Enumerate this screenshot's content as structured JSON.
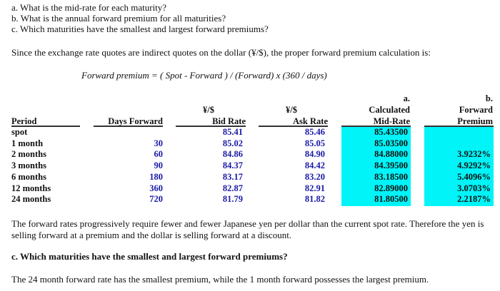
{
  "questions": [
    "a. What is the mid-rate for each maturity?",
    "b. What is the annual forward premium for all maturities?",
    "c. Which maturities have the smallest and largest forward premiums?"
  ],
  "intro": "Since the exchange rate quotes are indirect quotes on the dollar (¥/$), the proper forward premium calculation is:",
  "formula": "Forward premium = ( Spot - Forward ) / (Forward) x (360 / days)",
  "table": {
    "headers": {
      "period": "Period",
      "days": "Days Forward",
      "bid_top": "¥/$",
      "bid": "Bid Rate",
      "ask_top": "¥/$",
      "ask": "Ask Rate",
      "mid_top1": "a.",
      "mid_top2": "Calculated",
      "mid": "Mid-Rate",
      "prem_top1": "b.",
      "prem_top2": "Forward",
      "prem": "Premium"
    },
    "rows": [
      {
        "period": "spot",
        "days": "",
        "bid": "85.41",
        "ask": "85.46",
        "mid": "85.43500",
        "premium": ""
      },
      {
        "period": "1 month",
        "days": "30",
        "bid": "85.02",
        "ask": "85.05",
        "mid": "85.03500",
        "premium": ""
      },
      {
        "period": "2 months",
        "days": "60",
        "bid": "84.86",
        "ask": "84.90",
        "mid": "84.88000",
        "premium": "3.9232%"
      },
      {
        "period": "3 months",
        "days": "90",
        "bid": "84.37",
        "ask": "84.42",
        "mid": "84.39500",
        "premium": "4.9292%"
      },
      {
        "period": "6 months",
        "days": "180",
        "bid": "83.17",
        "ask": "83.20",
        "mid": "83.18500",
        "premium": "5.4096%"
      },
      {
        "period": "12 months",
        "days": "360",
        "bid": "82.87",
        "ask": "82.91",
        "mid": "82.89000",
        "premium": "3.0703%"
      },
      {
        "period": "24 months",
        "days": "720",
        "bid": "81.79",
        "ask": "81.82",
        "mid": "81.80500",
        "premium": "2.2187%"
      }
    ],
    "highlight_color": "#00f4f8",
    "value_color": "#1a1aa8"
  },
  "explanation": [
    "The forward rates progressively require fewer and fewer Japanese yen per dollar than the current spot rate. Therefore the yen is",
    "selling forward at a premium and the dollar is selling forward at a discount."
  ],
  "question_c_heading": "c.  Which maturities have the smallest and largest forward premiums?",
  "answer_c": "The 24 month forward rate has the smallest premium, while the 1 month forward possesses the largest premium."
}
